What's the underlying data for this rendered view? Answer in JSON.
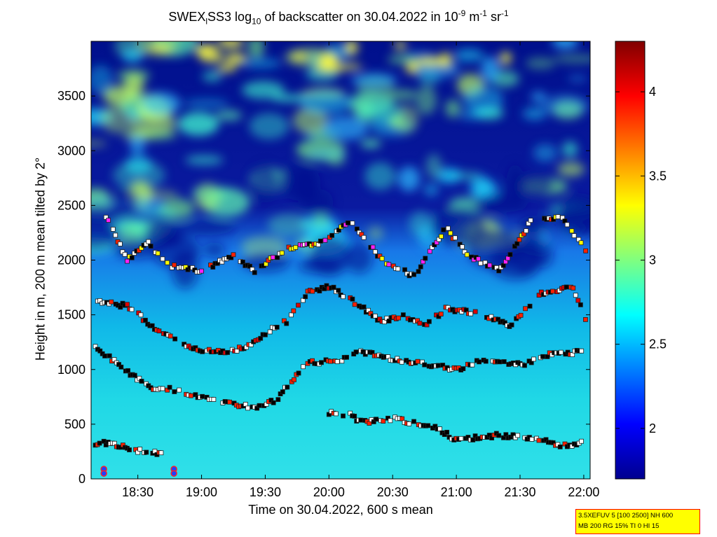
{
  "title": {
    "prefix": "SWEX",
    "sub1": "l",
    "mid": "SS3 log",
    "sub2": "10",
    "text": " of backscatter on 30.04.2022 in 10",
    "sup1": "-9",
    "unit1": " m",
    "sup2": "-1",
    "unit2": " sr",
    "sup3": "-1"
  },
  "xlabel": "Time on 30.04.2022, 600 s mean",
  "ylabel": "Height in m, 200 m mean tilted by 2°",
  "infobox": {
    "line1": "3.5XEFUV 5 [100 2500] NH 600",
    "line2": "MB 200 RG 15% TI 0 HI 15"
  },
  "chart_data": {
    "type": "heatmap",
    "x_ticks": [
      "18:30",
      "19:00",
      "19:30",
      "20:00",
      "20:30",
      "21:00",
      "21:30",
      "22:00"
    ],
    "x_tick_minutes": [
      1110,
      1140,
      1170,
      1200,
      1230,
      1260,
      1290,
      1320
    ],
    "xlim_minutes": [
      1088,
      1323
    ],
    "y_ticks": [
      0,
      500,
      1000,
      1500,
      2000,
      2500,
      3000,
      3500
    ],
    "ylim": [
      0,
      4000
    ],
    "colorbar": {
      "ticks": [
        2,
        2.5,
        3,
        3.5,
        4
      ],
      "range": [
        1.7,
        4.3
      ],
      "colormap": "jet"
    },
    "layers": [
      {
        "name": "ground",
        "points": [
          [
            1090,
            320
          ],
          [
            1095,
            330
          ],
          [
            1100,
            310
          ],
          [
            1105,
            280
          ],
          [
            1110,
            260
          ],
          [
            1115,
            250
          ],
          [
            1120,
            230
          ],
          [
            1122,
            210
          ]
        ]
      },
      {
        "name": "low-1",
        "points": [
          [
            1200,
            600
          ],
          [
            1210,
            590
          ],
          [
            1215,
            520
          ],
          [
            1220,
            530
          ],
          [
            1230,
            550
          ],
          [
            1240,
            510
          ],
          [
            1250,
            480
          ],
          [
            1260,
            350
          ],
          [
            1270,
            380
          ],
          [
            1280,
            400
          ],
          [
            1290,
            380
          ],
          [
            1300,
            360
          ],
          [
            1310,
            300
          ],
          [
            1320,
            330
          ]
        ]
      },
      {
        "name": "mid-1",
        "points": [
          [
            1090,
            1200
          ],
          [
            1100,
            1060
          ],
          [
            1115,
            840
          ],
          [
            1125,
            820
          ],
          [
            1135,
            760
          ],
          [
            1150,
            700
          ],
          [
            1165,
            650
          ],
          [
            1175,
            720
          ],
          [
            1190,
            1060
          ],
          [
            1205,
            1080
          ],
          [
            1215,
            1160
          ],
          [
            1230,
            1100
          ],
          [
            1245,
            1050
          ],
          [
            1260,
            1000
          ],
          [
            1275,
            1100
          ],
          [
            1290,
            1040
          ],
          [
            1305,
            1140
          ],
          [
            1320,
            1160
          ]
        ]
      },
      {
        "name": "mid-2",
        "points": [
          [
            1090,
            1620
          ],
          [
            1105,
            1580
          ],
          [
            1120,
            1350
          ],
          [
            1135,
            1200
          ],
          [
            1150,
            1150
          ],
          [
            1160,
            1200
          ],
          [
            1170,
            1330
          ],
          [
            1180,
            1440
          ],
          [
            1190,
            1700
          ],
          [
            1200,
            1760
          ],
          [
            1210,
            1640
          ],
          [
            1225,
            1440
          ],
          [
            1235,
            1500
          ],
          [
            1245,
            1400
          ],
          [
            1255,
            1550
          ],
          [
            1270,
            1520
          ],
          [
            1285,
            1400
          ],
          [
            1300,
            1700
          ],
          [
            1315,
            1750
          ],
          [
            1322,
            1400
          ]
        ]
      },
      {
        "name": "upper",
        "points": [
          [
            1095,
            2400
          ],
          [
            1105,
            2000
          ],
          [
            1115,
            2150
          ],
          [
            1125,
            1950
          ],
          [
            1140,
            1900
          ],
          [
            1155,
            2050
          ],
          [
            1165,
            1900
          ],
          [
            1180,
            2100
          ],
          [
            1195,
            2150
          ],
          [
            1210,
            2350
          ],
          [
            1225,
            2000
          ],
          [
            1240,
            1850
          ],
          [
            1255,
            2300
          ],
          [
            1265,
            2050
          ],
          [
            1280,
            1900
          ],
          [
            1295,
            2350
          ],
          [
            1310,
            2400
          ],
          [
            1322,
            2050
          ]
        ]
      }
    ]
  }
}
